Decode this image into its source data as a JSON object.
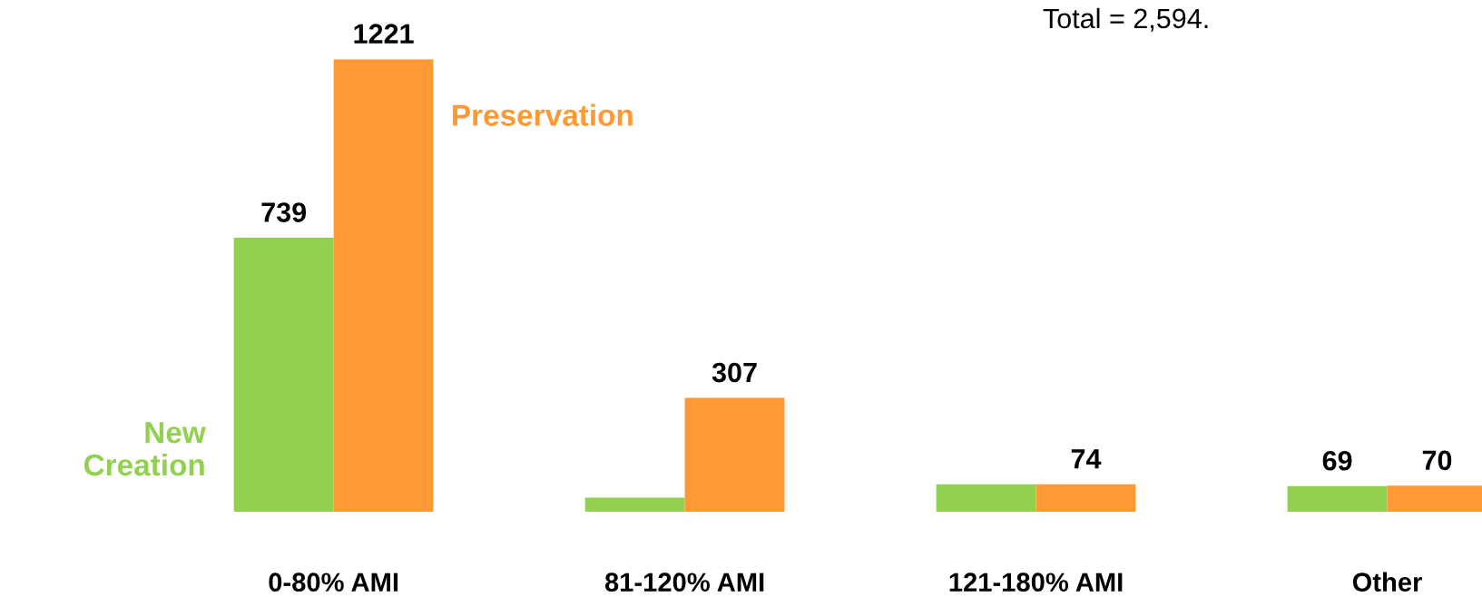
{
  "chart_data": {
    "type": "bar",
    "categories": [
      "0-80% AMI",
      "81-120% AMI",
      "121-180% AMI",
      "Other"
    ],
    "series": [
      {
        "name": "New Creation",
        "color": "#92d050",
        "values": [
          739,
          38,
          74,
          69
        ],
        "value_labels": [
          "739",
          null,
          null,
          "69"
        ]
      },
      {
        "name": "Preservation",
        "color": "#ff9933",
        "values": [
          1221,
          307,
          74,
          70
        ],
        "value_labels": [
          "1221",
          "307",
          "74",
          "70"
        ]
      }
    ],
    "annotations": [
      "Total = 2,594."
    ]
  }
}
